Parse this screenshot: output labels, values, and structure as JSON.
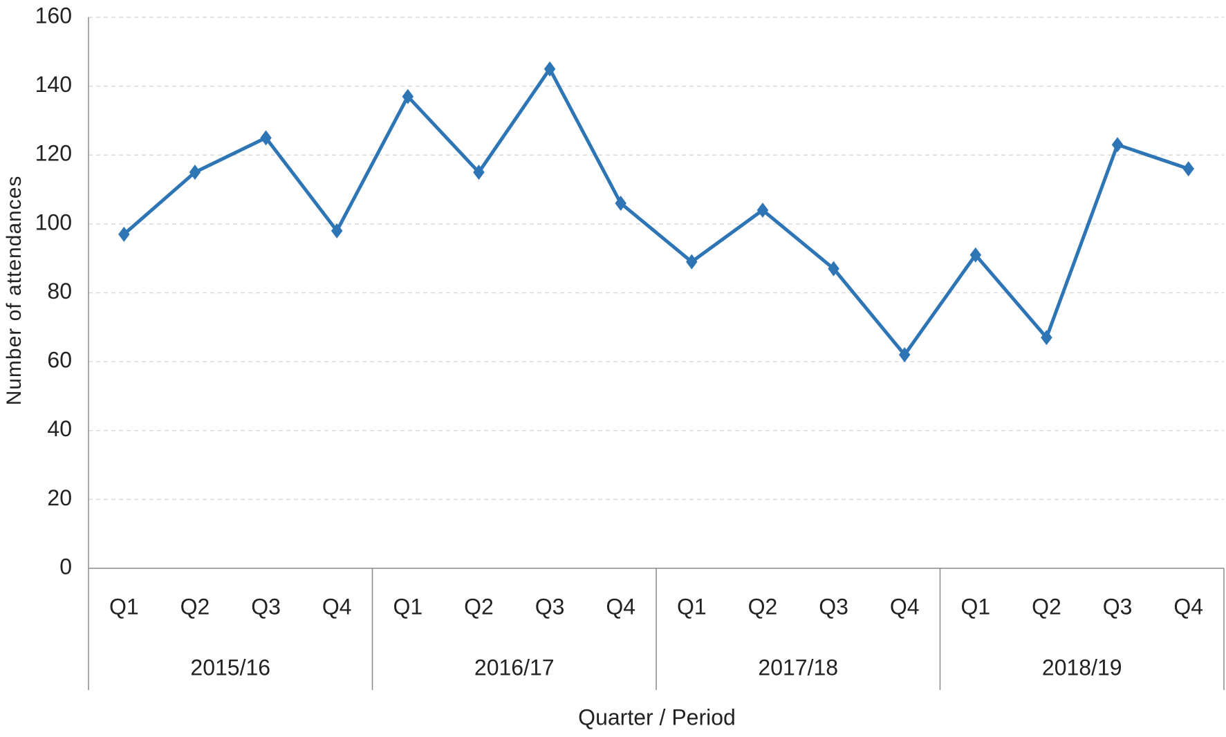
{
  "chart_data": {
    "type": "line",
    "x_label": "Quarter / Period",
    "y_label": "Number of attendances",
    "categories": [
      "Q1",
      "Q2",
      "Q3",
      "Q4",
      "Q1",
      "Q2",
      "Q3",
      "Q4",
      "Q1",
      "Q2",
      "Q3",
      "Q4",
      "Q1",
      "Q2",
      "Q3",
      "Q4"
    ],
    "groups": [
      "2015/16",
      "2016/17",
      "2017/18",
      "2018/19"
    ],
    "series": [
      {
        "color": "#2e75b6",
        "values": [
          97,
          115,
          125,
          98,
          137,
          115,
          145,
          106,
          89,
          104,
          87,
          62,
          91,
          67,
          123,
          116
        ]
      }
    ],
    "ylim": [
      0,
      160
    ],
    "yticks": [
      0,
      20,
      40,
      60,
      80,
      100,
      120,
      140,
      160
    ],
    "grid": true,
    "marker": "diamond"
  }
}
